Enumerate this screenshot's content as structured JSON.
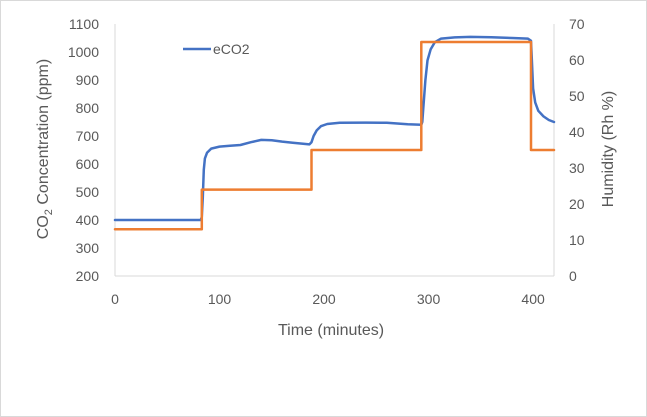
{
  "chart_data": {
    "type": "line",
    "title": "",
    "xlabel": "Time (minutes)",
    "ylabel": {
      "pre": "CO",
      "sub": "2",
      "post": " Concentration (ppm)"
    },
    "y2label": "Humidity (Rh %)",
    "xlim": [
      0,
      420
    ],
    "ylim": [
      200,
      1100
    ],
    "y2lim": [
      0,
      70
    ],
    "x_ticks": [
      "0",
      "100",
      "200",
      "300",
      "400"
    ],
    "y_ticks": [
      "200",
      "300",
      "400",
      "500",
      "600",
      "700",
      "800",
      "900",
      "1000",
      "1100"
    ],
    "y2_ticks": [
      "0",
      "10",
      "20",
      "30",
      "40",
      "50",
      "60",
      "70"
    ],
    "grid": false,
    "legend": {
      "placement": "top-left",
      "entries": [
        "eCO2"
      ]
    },
    "series": [
      {
        "name": "eCO2",
        "axis": "left",
        "color": "#4472c4",
        "points": [
          [
            0,
            400
          ],
          [
            82,
            400
          ],
          [
            83,
            410
          ],
          [
            84,
            480
          ],
          [
            85,
            580
          ],
          [
            86,
            620
          ],
          [
            88,
            640
          ],
          [
            92,
            655
          ],
          [
            100,
            662
          ],
          [
            110,
            665
          ],
          [
            120,
            668
          ],
          [
            130,
            678
          ],
          [
            140,
            686
          ],
          [
            150,
            685
          ],
          [
            160,
            680
          ],
          [
            170,
            676
          ],
          [
            180,
            672
          ],
          [
            186,
            670
          ],
          [
            188,
            678
          ],
          [
            190,
            700
          ],
          [
            193,
            720
          ],
          [
            197,
            735
          ],
          [
            203,
            743
          ],
          [
            215,
            747
          ],
          [
            240,
            748
          ],
          [
            260,
            747
          ],
          [
            280,
            742
          ],
          [
            293,
            740
          ],
          [
            294,
            750
          ],
          [
            295,
            800
          ],
          [
            297,
            900
          ],
          [
            299,
            970
          ],
          [
            302,
            1010
          ],
          [
            306,
            1035
          ],
          [
            312,
            1048
          ],
          [
            325,
            1052
          ],
          [
            340,
            1054
          ],
          [
            360,
            1053
          ],
          [
            380,
            1050
          ],
          [
            395,
            1048
          ],
          [
            398,
            1040
          ],
          [
            399,
            960
          ],
          [
            400,
            870
          ],
          [
            402,
            820
          ],
          [
            405,
            790
          ],
          [
            410,
            770
          ],
          [
            415,
            757
          ],
          [
            420,
            750
          ]
        ]
      },
      {
        "name": "",
        "axis": "right",
        "color": "#ed7d31",
        "points": [
          [
            0,
            13
          ],
          [
            83,
            13
          ],
          [
            83,
            24
          ],
          [
            188,
            24
          ],
          [
            188,
            35
          ],
          [
            293,
            35
          ],
          [
            293,
            65
          ],
          [
            398,
            65
          ],
          [
            398,
            35
          ],
          [
            420,
            35
          ]
        ]
      }
    ]
  }
}
